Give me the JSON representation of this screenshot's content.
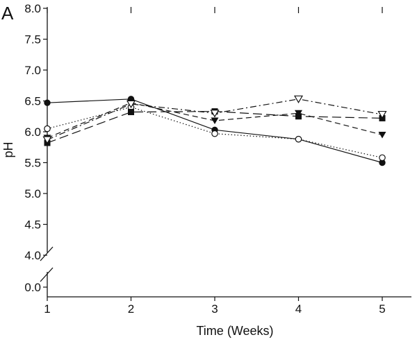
{
  "chart_data": {
    "type": "line",
    "panel_label": "A",
    "title": "",
    "xlabel": "Time (Weeks)",
    "ylabel": "pH",
    "x": [
      1,
      2,
      3,
      4,
      5
    ],
    "x_tick_labels": [
      "1",
      "2",
      "3",
      "4",
      "5"
    ],
    "y_upper_range": [
      4.0,
      8.0
    ],
    "y_tick_labels": [
      "8.0",
      "7.5",
      "7.0",
      "6.5",
      "6.0",
      "5.5",
      "5.0",
      "4.5",
      "4.0",
      "0.0"
    ],
    "y_axis_break": "between 0.0 and 4.0",
    "grid": false,
    "legend": "none",
    "series": [
      {
        "name": "filled-circle-solid",
        "line_style": "solid",
        "marker": "filled-circle",
        "values": [
          6.47,
          6.53,
          6.03,
          5.88,
          5.5
        ]
      },
      {
        "name": "open-circle-dotted",
        "line_style": "dotted",
        "marker": "open-circle",
        "values": [
          6.05,
          6.4,
          5.97,
          5.88,
          5.58
        ]
      },
      {
        "name": "filled-square-long-dash",
        "line_style": "long-dash",
        "marker": "filled-square",
        "values": [
          5.82,
          6.32,
          6.33,
          6.25,
          6.22
        ]
      },
      {
        "name": "filled-triangle-dash",
        "line_style": "dash",
        "marker": "filled-triangle-down",
        "values": [
          5.9,
          6.47,
          6.18,
          6.3,
          5.95
        ]
      },
      {
        "name": "open-triangle-dash-dot",
        "line_style": "dash-dot",
        "marker": "open-triangle-down",
        "values": [
          5.87,
          6.45,
          6.3,
          6.53,
          6.28
        ]
      }
    ]
  }
}
